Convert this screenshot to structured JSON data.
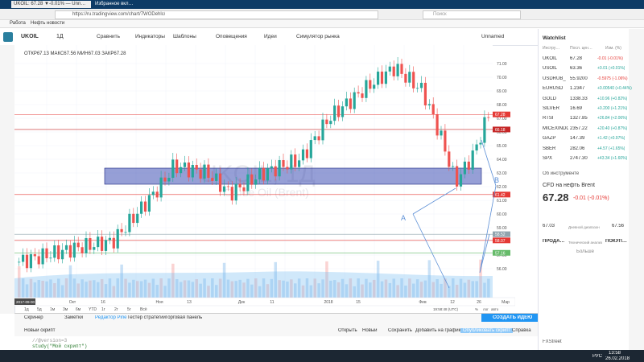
{
  "browser": {
    "tabs": [
      "UKOIL: 67.28 ▼-0.01% — Unn…",
      "Избранное вкл…"
    ],
    "url": "https://ru.tradingview.com/chart/7WODehlc/",
    "search": "Поиск",
    "bookmarks": [
      "Работа",
      "Нефть новости"
    ]
  },
  "toolbar": {
    "symbol": "UKOIL",
    "interval": "1Д",
    "buttons": [
      "Сравнить",
      "Индикаторы",
      "Шаблоны",
      "Оповещения",
      "Идеи",
      "Симулятор рынка"
    ],
    "layout": "Unnamed"
  },
  "chart": {
    "ohlc": "ОТКР67.13 МАКС67.56 МИН67.03 ЗАКР67.28",
    "watermark": "UKOIL, 1Д",
    "watermark_sub": "Crude Oil (Brent)",
    "price_ticks": [
      "71.00",
      "70.00",
      "69.00",
      "68.00",
      "67.00",
      "66.00",
      "65.00",
      "64.00",
      "63.00",
      "62.00",
      "61.00",
      "60.00",
      "59.00",
      "58.00",
      "57.00",
      "56.00"
    ],
    "price_labels": [
      {
        "text": "67.28",
        "color": "#e53935"
      },
      {
        "text": "66.18",
        "color": "#c62828"
      },
      {
        "text": "61.42",
        "color": "#e53935"
      },
      {
        "text": "58.52",
        "color": "#90a4ae"
      },
      {
        "text": "58.07",
        "color": "#e53935"
      },
      {
        "text": "57.16",
        "color": "#66bb6a"
      }
    ],
    "time_ticks": [
      "Окт",
      "16",
      "Ноя",
      "13",
      "Дек",
      "11",
      "2018",
      "15",
      "Фев",
      "12",
      "26",
      "Мар"
    ],
    "start_date": "2017-09-00",
    "ranges": [
      "1д",
      "5д",
      "1м",
      "3м",
      "6м",
      "YTD",
      "1г",
      "2г",
      "5г",
      "Всё"
    ],
    "clock": "19:58:48 (UTC)",
    "axis_options": [
      "%",
      "лог",
      "авто"
    ],
    "annotations": [
      "A",
      "B"
    ]
  },
  "bottom": {
    "tabs": [
      "Скринер",
      "Заметки",
      "Редактор Pine",
      "Тестер стратегий",
      "Торговая панель"
    ],
    "create_idea": "СОЗДАТЬ ИДЕЮ",
    "script_name": "Новый скрипт",
    "actions": [
      "Открыть",
      "Новый",
      "Сохранить",
      "Добавить на график",
      "Опубликовать скрипт",
      "Справка"
    ],
    "code": [
      "//@version=3",
      "study(\"Мой скрипт\")"
    ]
  },
  "watchlist": {
    "title": "Watchlist",
    "columns": [
      "Инстру…",
      "Посл. цен…",
      "Изм. (%)"
    ],
    "rows": [
      [
        "UKOIL",
        "67.28",
        "-0.01 (-0.01%)"
      ],
      [
        "USOIL",
        "63.36",
        "+0.01 (+0.01%)"
      ],
      [
        "USDRUB_",
        "55.9200",
        "-0.5975 (-1.06%)"
      ],
      [
        "EURUSD",
        "1.2347",
        "+0.00540 (+0.44%)"
      ],
      [
        "GOLD",
        "1338.33",
        "+10.96 (+0.82%)"
      ],
      [
        "SILVER",
        "16.69",
        "+0.200 (+1.21%)"
      ],
      [
        "RTSI",
        "1327.85",
        "+26.84 (+2.06%)"
      ],
      [
        "MICEXINDC",
        "2357.22",
        "+20.40 (+0.87%)"
      ],
      [
        "GAZP",
        "147.39",
        "+1.42 (+0.97%)"
      ],
      [
        "SBER",
        "282.06",
        "+4.57 (+1.65%)"
      ],
      [
        "SPX",
        "2747.30",
        "+43.34 (+1.60%)"
      ]
    ],
    "about": "Об инструменте",
    "name": "CFD на нефть Brent",
    "price": "67.28",
    "change": "-0.01 (-0.01%)",
    "low": "67.03",
    "range_label": "Дневной диапазон",
    "high": "67.56",
    "sell": "ПРОДА…",
    "ta": "Технический анализ",
    "buy": "ПОКУП…",
    "more": "Больше",
    "news": "FXStreet"
  },
  "taskbar": {
    "lang": "РУС",
    "time": "13:58",
    "date": "26.02.2018"
  }
}
